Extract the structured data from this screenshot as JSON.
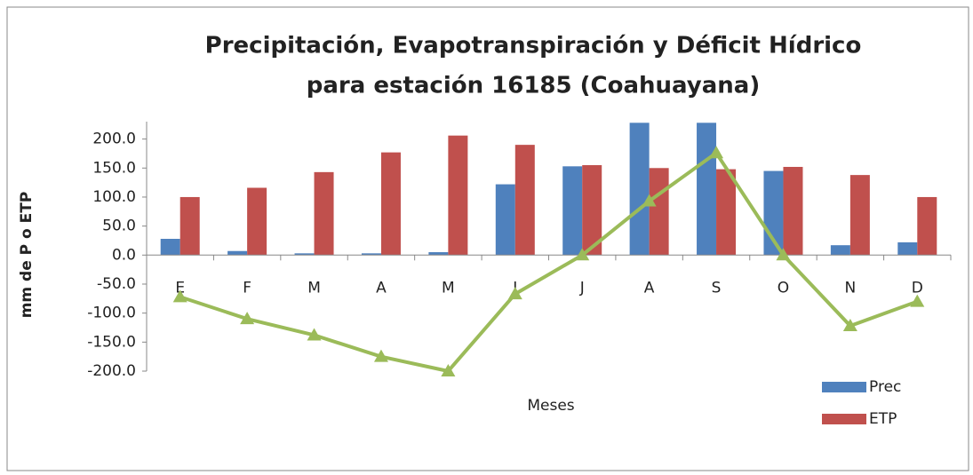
{
  "chart_data": {
    "type": "bar",
    "title": [
      "Precipitación, Evapotranspiración y Déficit Hídrico",
      "para estación 16185 (Coahuayana)"
    ],
    "x_label": "Meses",
    "y_label": "mm de P o ETP",
    "categories": [
      "E",
      "F",
      "M",
      "A",
      "M",
      "J",
      "J",
      "A",
      "S",
      "O",
      "N",
      "D"
    ],
    "series": [
      {
        "name": "Prec",
        "color": "#4f81bd",
        "values": [
          28,
          7,
          3,
          3,
          5,
          122,
          153,
          228,
          228,
          145,
          17,
          22
        ]
      },
      {
        "name": "ETP",
        "color": "#c0504d",
        "values": [
          100,
          116,
          143,
          177,
          206,
          190,
          155,
          150,
          148,
          152,
          138,
          100
        ]
      },
      {
        "type": "line",
        "color": "#9bbb59",
        "values": [
          -72,
          -110,
          -138,
          -175,
          -200,
          -67,
          0,
          93,
          176,
          0,
          -122,
          -80
        ]
      }
    ],
    "ylim": [
      -200,
      230
    ],
    "yticks": [
      {
        "value": -200,
        "label": "-200.0"
      },
      {
        "value": -150,
        "label": "-150.0"
      },
      {
        "value": -100,
        "label": "-100.0"
      },
      {
        "value": -50,
        "label": "-50.0"
      },
      {
        "value": 0,
        "label": "0.0"
      },
      {
        "value": 50,
        "label": "50.0"
      },
      {
        "value": 100,
        "label": "100.0"
      },
      {
        "value": 150,
        "label": "150.0"
      },
      {
        "value": 200,
        "label": "200.0"
      }
    ],
    "legend": "right"
  }
}
